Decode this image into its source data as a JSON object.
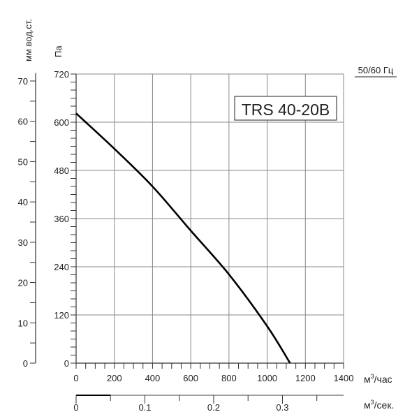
{
  "chart_data": {
    "type": "line",
    "title": "TRS 40-20B",
    "frequency_label": "50/60 Гц",
    "xlabel": "м³/час",
    "x_unit_base": "м",
    "x_unit_sup": "3",
    "x_unit_tail": "/час",
    "xlim": [
      0,
      1400
    ],
    "xticks": [
      "0",
      "200",
      "400",
      "600",
      "800",
      "1000",
      "1200",
      "1400"
    ],
    "ylabel": "Па",
    "ylim": [
      0,
      720
    ],
    "yticks": [
      "0",
      "120",
      "240",
      "360",
      "480",
      "600",
      "720"
    ],
    "secondary_y": {
      "label": "мм вод.ст.",
      "lim": [
        0,
        73.4
      ],
      "ticks": [
        "0",
        "10",
        "20",
        "30",
        "40",
        "50",
        "60",
        "70"
      ]
    },
    "secondary_x": {
      "label": "м³/сек.",
      "unit_base": "м",
      "unit_sup": "3",
      "unit_tail": "/сек.",
      "ticks": [
        "0",
        "0.1",
        "0.2",
        "0.3"
      ]
    },
    "grid": true,
    "series": [
      {
        "x": [
          0,
          200,
          400,
          600,
          800,
          1000,
          1120
        ],
        "y": [
          622,
          534,
          440,
          330,
          221,
          92,
          0
        ]
      }
    ],
    "colors": {
      "curve": "#000000",
      "grid": "#888888"
    }
  }
}
